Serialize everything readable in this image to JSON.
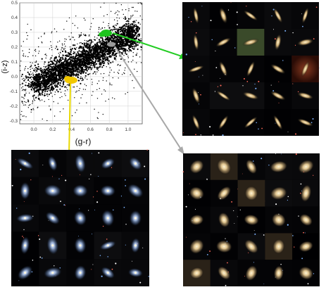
{
  "scatter": {
    "ylabel": "(i-z)",
    "xlabel": "(g-r)",
    "y_ticks": [
      "0.5",
      "0.4",
      "0.3",
      "0.2",
      "0.1",
      "0.0",
      "-0.1",
      "-0.2",
      "-0.3"
    ],
    "x_ticks": [
      "0.0",
      "0.2",
      "0.4",
      "0.6",
      "0.8",
      "1.0"
    ],
    "xlim": [
      -0.15,
      1.15
    ],
    "ylim": [
      -0.32,
      0.5
    ]
  },
  "chart_data": {
    "type": "scatter",
    "xlabel": "(g-r)",
    "ylabel": "(i-z)",
    "xlim": [
      -0.15,
      1.15
    ],
    "ylim": [
      -0.32,
      0.5
    ],
    "grid": true,
    "series": [
      {
        "role": "dense-galaxy-cloud",
        "color": "#000000",
        "center_trend": [
          [
            0.05,
            -0.02
          ],
          [
            0.45,
            0.08
          ],
          [
            0.8,
            0.2
          ],
          [
            1.05,
            0.32
          ]
        ]
      },
      {
        "role": "highlight-region",
        "color": "#1ec41e",
        "center": [
          0.8,
          0.36
        ]
      },
      {
        "role": "highlight-region",
        "color": "#9a9a9a",
        "center": [
          0.82,
          0.26
        ]
      },
      {
        "role": "highlight-region",
        "color": "#f2c800",
        "center": [
          0.42,
          0.01
        ]
      }
    ]
  },
  "panels": {
    "top_right": {
      "arrow_color": "#22cc22",
      "tile_style": "edge-on"
    },
    "bottom_right": {
      "arrow_color": "#a8a8a8",
      "tile_style": "elliptical"
    },
    "bottom_left": {
      "arrow_color": "#e8d800",
      "tile_style": "spiral"
    }
  }
}
